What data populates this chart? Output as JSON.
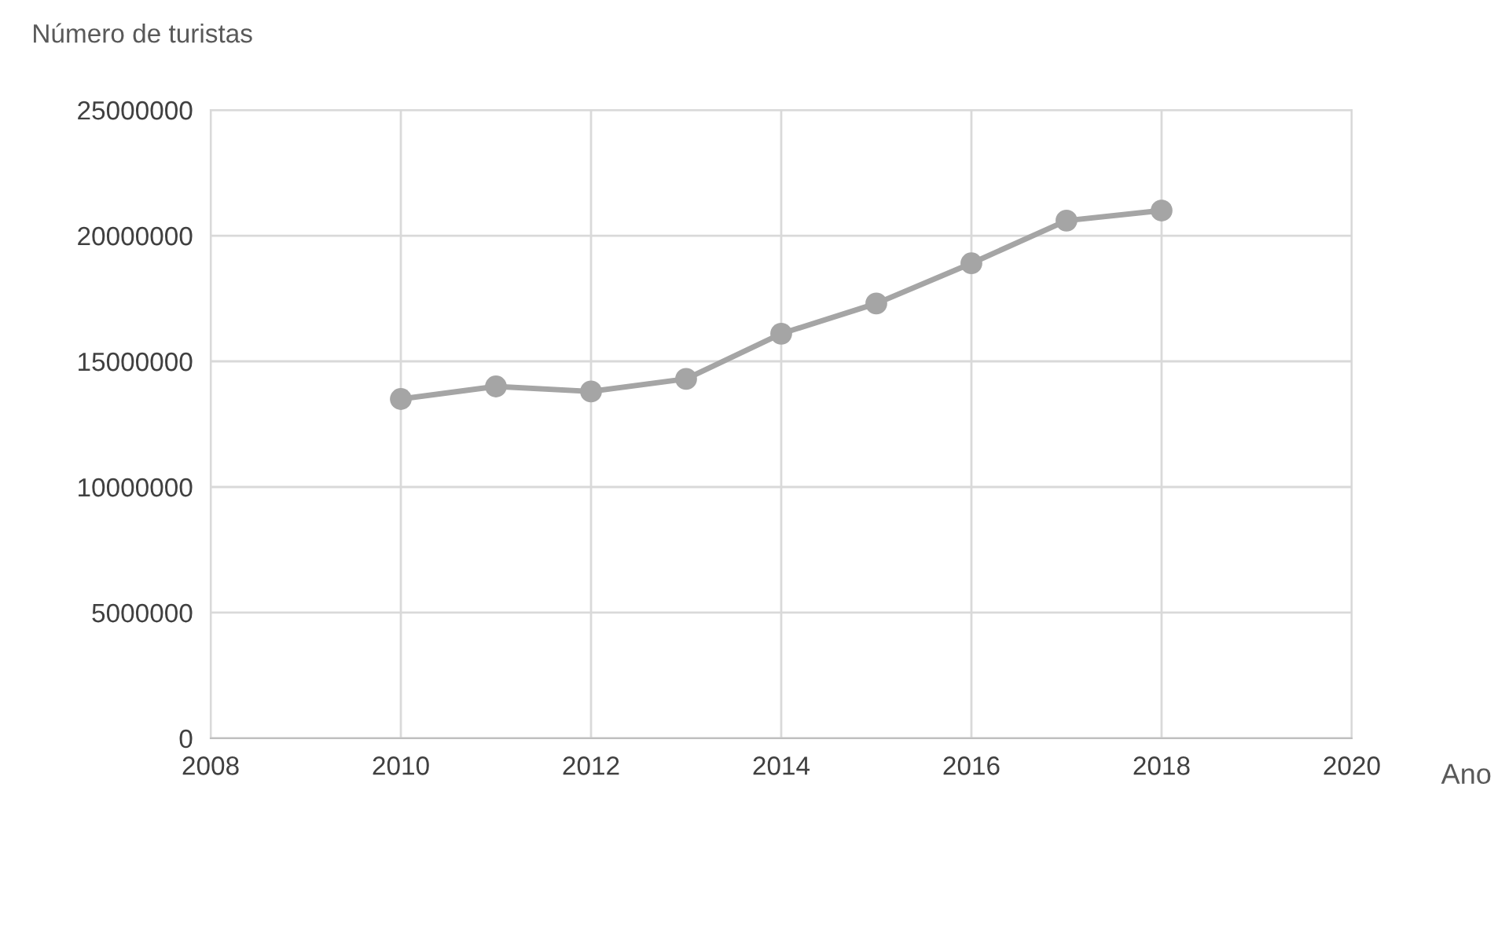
{
  "chart_data": {
    "type": "line",
    "ylabel": "Número de turistas",
    "xlabel": "Ano",
    "x": [
      2010,
      2011,
      2012,
      2013,
      2014,
      2015,
      2016,
      2017,
      2018
    ],
    "series": [
      {
        "color": "#a5a5a5",
        "values": [
          13500000,
          14000000,
          13800000,
          14300000,
          16100000,
          17300000,
          18900000,
          20600000,
          21000000
        ]
      }
    ],
    "xlim": [
      2008,
      2020
    ],
    "xticks": [
      2008,
      2010,
      2012,
      2014,
      2016,
      2018,
      2020
    ],
    "ylim": [
      0,
      25000000
    ],
    "yticks": [
      0,
      5000000,
      10000000,
      15000000,
      20000000,
      25000000
    ],
    "grid": true,
    "marker": "circle",
    "line_style": "solid"
  }
}
